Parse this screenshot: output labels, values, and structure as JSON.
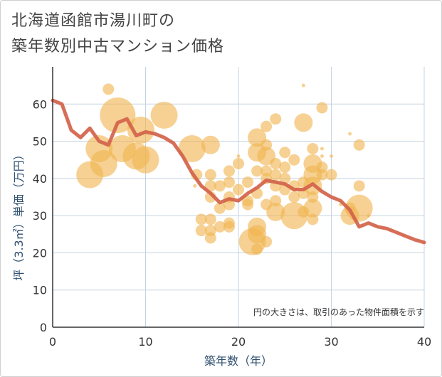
{
  "title": {
    "line1": "北海道函館市湯川町の",
    "line2": "築年数別中古マンション価格"
  },
  "chart_data": {
    "type": "scatter",
    "xlabel": "築年数（年）",
    "ylabel": "坪（3.3㎡）単価（万円）",
    "xlim": [
      0,
      40
    ],
    "ylim": [
      0,
      70
    ],
    "x_ticks": [
      0,
      10,
      20,
      30,
      40
    ],
    "y_ticks": [
      0,
      10,
      20,
      30,
      40,
      50,
      60
    ],
    "grid": true,
    "annotation": "円の大きさは、取引のあった物件面積を示す",
    "colors": {
      "bubble": "#f0b450",
      "line": "#d2624a",
      "grid": "#c5d3e0",
      "axis": "#333333"
    },
    "bubbles": [
      {
        "x": 4,
        "y": 41,
        "s": 3
      },
      {
        "x": 5,
        "y": 48,
        "s": 3
      },
      {
        "x": 5.5,
        "y": 44,
        "s": 3
      },
      {
        "x": 6,
        "y": 64,
        "s": 1
      },
      {
        "x": 7,
        "y": 57,
        "s": 4
      },
      {
        "x": 7.5,
        "y": 48,
        "s": 3
      },
      {
        "x": 9,
        "y": 46,
        "s": 3
      },
      {
        "x": 9.5,
        "y": 53,
        "s": 3
      },
      {
        "x": 10,
        "y": 45,
        "s": 3
      },
      {
        "x": 12,
        "y": 57,
        "s": 3
      },
      {
        "x": 15,
        "y": 48,
        "s": 3
      },
      {
        "x": 15.3,
        "y": 38,
        "s": 0
      },
      {
        "x": 15.5,
        "y": 41,
        "s": 1
      },
      {
        "x": 16,
        "y": 29,
        "s": 1
      },
      {
        "x": 16,
        "y": 26,
        "s": 1
      },
      {
        "x": 17,
        "y": 49,
        "s": 2
      },
      {
        "x": 17,
        "y": 41,
        "s": 1
      },
      {
        "x": 17,
        "y": 38,
        "s": 1
      },
      {
        "x": 17,
        "y": 35,
        "s": 1
      },
      {
        "x": 17,
        "y": 29,
        "s": 1
      },
      {
        "x": 17,
        "y": 26,
        "s": 1
      },
      {
        "x": 17,
        "y": 24,
        "s": 1
      },
      {
        "x": 18,
        "y": 38,
        "s": 1
      },
      {
        "x": 18,
        "y": 32,
        "s": 1
      },
      {
        "x": 18,
        "y": 27,
        "s": 1
      },
      {
        "x": 19,
        "y": 42,
        "s": 1
      },
      {
        "x": 19,
        "y": 39,
        "s": 1
      },
      {
        "x": 19,
        "y": 35,
        "s": 1
      },
      {
        "x": 19,
        "y": 33,
        "s": 1
      },
      {
        "x": 19,
        "y": 28,
        "s": 1
      },
      {
        "x": 19,
        "y": 27,
        "s": 1
      },
      {
        "x": 20,
        "y": 44,
        "s": 1
      },
      {
        "x": 20,
        "y": 37,
        "s": 1
      },
      {
        "x": 20,
        "y": 46,
        "s": 0
      },
      {
        "x": 21,
        "y": 34,
        "s": 1
      },
      {
        "x": 21,
        "y": 33,
        "s": 1
      },
      {
        "x": 21,
        "y": 39,
        "s": 1
      },
      {
        "x": 21.5,
        "y": 23,
        "s": 3
      },
      {
        "x": 22,
        "y": 51,
        "s": 2
      },
      {
        "x": 22,
        "y": 47,
        "s": 2
      },
      {
        "x": 22,
        "y": 42,
        "s": 1
      },
      {
        "x": 22,
        "y": 36,
        "s": 1
      },
      {
        "x": 22,
        "y": 27,
        "s": 2
      },
      {
        "x": 22,
        "y": 25,
        "s": 2
      },
      {
        "x": 22,
        "y": 21,
        "s": 1
      },
      {
        "x": 23,
        "y": 54,
        "s": 1
      },
      {
        "x": 23,
        "y": 49,
        "s": 1
      },
      {
        "x": 23,
        "y": 46,
        "s": 2
      },
      {
        "x": 23,
        "y": 42,
        "s": 1
      },
      {
        "x": 23,
        "y": 40,
        "s": 1
      },
      {
        "x": 23,
        "y": 33,
        "s": 1
      },
      {
        "x": 23,
        "y": 23,
        "s": 1
      },
      {
        "x": 24,
        "y": 56,
        "s": 1
      },
      {
        "x": 24,
        "y": 44,
        "s": 1
      },
      {
        "x": 24,
        "y": 41,
        "s": 1
      },
      {
        "x": 24,
        "y": 38,
        "s": 1
      },
      {
        "x": 24,
        "y": 34,
        "s": 1
      },
      {
        "x": 24,
        "y": 31,
        "s": 2
      },
      {
        "x": 25,
        "y": 47,
        "s": 1
      },
      {
        "x": 25,
        "y": 43,
        "s": 1
      },
      {
        "x": 25,
        "y": 40,
        "s": 1
      },
      {
        "x": 25,
        "y": 37,
        "s": 1
      },
      {
        "x": 26,
        "y": 45,
        "s": 1
      },
      {
        "x": 26,
        "y": 38,
        "s": 1
      },
      {
        "x": 26,
        "y": 35,
        "s": 1
      },
      {
        "x": 26,
        "y": 30,
        "s": 3
      },
      {
        "x": 27,
        "y": 65,
        "s": 0
      },
      {
        "x": 27,
        "y": 55,
        "s": 2
      },
      {
        "x": 27,
        "y": 39,
        "s": 1
      },
      {
        "x": 27,
        "y": 36,
        "s": 1
      },
      {
        "x": 27,
        "y": 31,
        "s": 1
      },
      {
        "x": 28,
        "y": 48,
        "s": 1
      },
      {
        "x": 28,
        "y": 44,
        "s": 2
      },
      {
        "x": 28,
        "y": 41,
        "s": 2
      },
      {
        "x": 28,
        "y": 38,
        "s": 2
      },
      {
        "x": 28,
        "y": 35,
        "s": 1
      },
      {
        "x": 28,
        "y": 32,
        "s": 2
      },
      {
        "x": 28,
        "y": 29,
        "s": 1
      },
      {
        "x": 29,
        "y": 59,
        "s": 1
      },
      {
        "x": 29,
        "y": 48,
        "s": 0
      },
      {
        "x": 29,
        "y": 46,
        "s": 0
      },
      {
        "x": 29,
        "y": 43,
        "s": 1
      },
      {
        "x": 29,
        "y": 41,
        "s": 1
      },
      {
        "x": 30,
        "y": 46,
        "s": 0
      },
      {
        "x": 30,
        "y": 41,
        "s": 1
      },
      {
        "x": 31,
        "y": 33,
        "s": 0
      },
      {
        "x": 32,
        "y": 52,
        "s": 0
      },
      {
        "x": 32,
        "y": 32,
        "s": 1
      },
      {
        "x": 32,
        "y": 30,
        "s": 2
      },
      {
        "x": 33,
        "y": 49,
        "s": 1
      },
      {
        "x": 33,
        "y": 38,
        "s": 1
      },
      {
        "x": 33,
        "y": 32,
        "s": 3
      },
      {
        "x": 34,
        "y": 30,
        "s": 0
      }
    ],
    "trend": {
      "x": [
        0,
        1,
        2,
        3,
        4,
        5,
        6,
        7,
        8,
        9,
        10,
        11,
        12,
        13,
        14,
        15,
        16,
        17,
        18,
        19,
        20,
        21,
        22,
        23,
        24,
        25,
        26,
        27,
        28,
        29,
        30,
        31,
        32,
        33,
        34,
        35,
        36,
        37,
        38,
        39,
        40
      ],
      "y": [
        61,
        60,
        53,
        51,
        53.5,
        50,
        49,
        55,
        56,
        51.5,
        52.5,
        52,
        51,
        49.5,
        46,
        41.5,
        38,
        36,
        33.5,
        34.5,
        34,
        36,
        37.5,
        39.5,
        39,
        38.5,
        37,
        37,
        38.5,
        36.5,
        35,
        34,
        31.5,
        27,
        28,
        27,
        26.5,
        25.5,
        24.5,
        23.5,
        22.8
      ]
    }
  }
}
